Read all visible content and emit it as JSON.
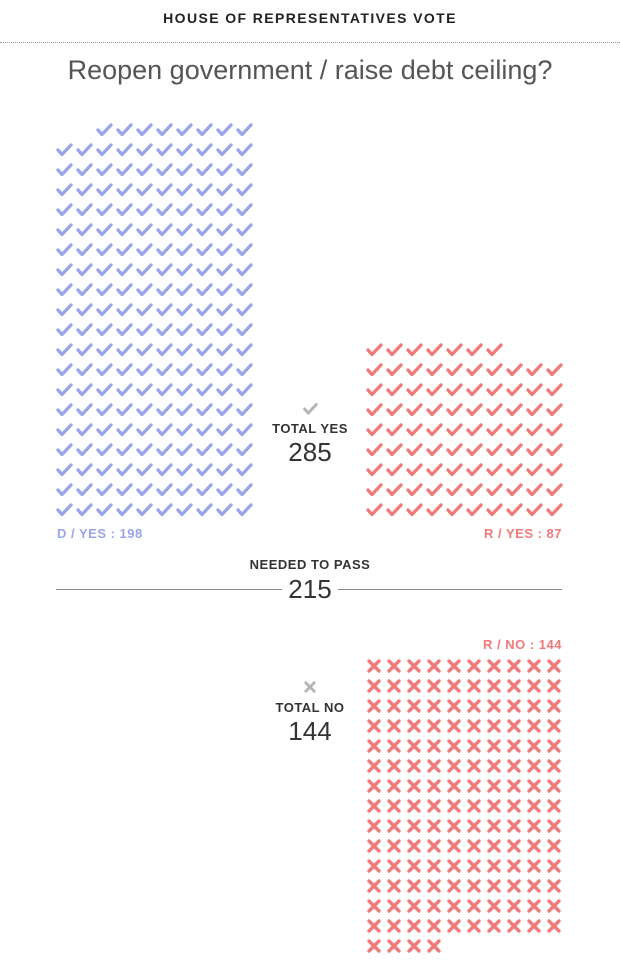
{
  "header": {
    "kicker": "HOUSE OF REPRESENTATIVES VOTE",
    "question": "Reopen government / raise debt ceiling?"
  },
  "labels": {
    "d_yes": "D / YES : 198",
    "r_yes": "R / YES : 87",
    "r_no": "R / NO : 144",
    "total_yes": "TOTAL YES",
    "total_yes_value": "285",
    "total_no": "TOTAL NO",
    "total_no_value": "144",
    "needed": "NEEDED TO PASS",
    "needed_value": "215"
  },
  "colors": {
    "democrat": "#9aa4e8",
    "republican": "#f07a7a",
    "neutral_icon": "#b5b5b5"
  },
  "icons": {
    "yes": "check-icon",
    "no": "x-icon"
  },
  "chart_data": {
    "type": "waffle",
    "unit": "one icon = one representative",
    "groups": [
      {
        "party": "D",
        "vote": "yes",
        "count": 198
      },
      {
        "party": "R",
        "vote": "yes",
        "count": 87
      },
      {
        "party": "R",
        "vote": "no",
        "count": 144
      }
    ],
    "totals": {
      "yes": 285,
      "no": 144
    },
    "threshold": 215
  }
}
